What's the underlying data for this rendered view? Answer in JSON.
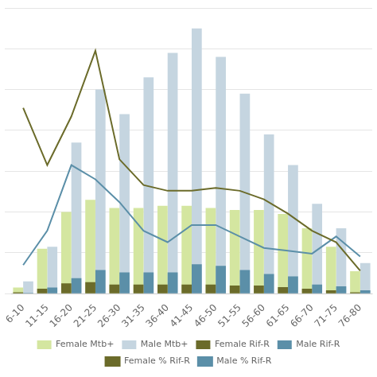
{
  "chart_data": {
    "type": "bar",
    "categories": [
      "6-10",
      "11-15",
      "16-20",
      "21-25",
      "26-30",
      "31-35",
      "36-40",
      "41-45",
      "46-50",
      "51-55",
      "56-60",
      "61-65",
      "66-70",
      "71-75",
      "76-80"
    ],
    "series": [
      {
        "name": "Female Mtb+",
        "type": "bar",
        "color": "#d4e6a0",
        "values": [
          15,
          110,
          200,
          230,
          210,
          210,
          215,
          215,
          210,
          205,
          205,
          195,
          160,
          115,
          55
        ]
      },
      {
        "name": "Male Mtb+",
        "type": "bar",
        "color": "#c5d5e0",
        "values": [
          30,
          115,
          370,
          500,
          440,
          530,
          590,
          650,
          580,
          490,
          390,
          315,
          220,
          160,
          75
        ]
      },
      {
        "name": "Female Rif-R",
        "type": "bar",
        "color": "#6b6b2a",
        "values": [
          3,
          12,
          25,
          28,
          22,
          22,
          22,
          22,
          22,
          20,
          20,
          16,
          12,
          8,
          3
        ]
      },
      {
        "name": "Male Rif-R",
        "type": "bar",
        "color": "#5b8fa8",
        "values": [
          2,
          15,
          38,
          58,
          52,
          52,
          52,
          72,
          68,
          58,
          48,
          42,
          22,
          18,
          8
        ]
      },
      {
        "name": "Female % Rif-R",
        "type": "line",
        "axis": "y2",
        "color": "#6b6b2a",
        "values": [
          65,
          45,
          62,
          85,
          47,
          38,
          36,
          36,
          37,
          36,
          33,
          28,
          22,
          18,
          8
        ]
      },
      {
        "name": "Male % Rif-R",
        "type": "line",
        "axis": "y2",
        "color": "#5b8fa8",
        "values": [
          10,
          22,
          45,
          40,
          32,
          22,
          18,
          24,
          24,
          20,
          16,
          15,
          14,
          20,
          13
        ]
      }
    ],
    "ylim": [
      0,
      700
    ],
    "yticks": [
      0,
      100,
      200,
      300,
      400,
      500,
      600,
      700
    ],
    "y2lim": [
      0,
      100
    ],
    "grid": true,
    "tick_labels": "x",
    "legend": "bottom"
  }
}
